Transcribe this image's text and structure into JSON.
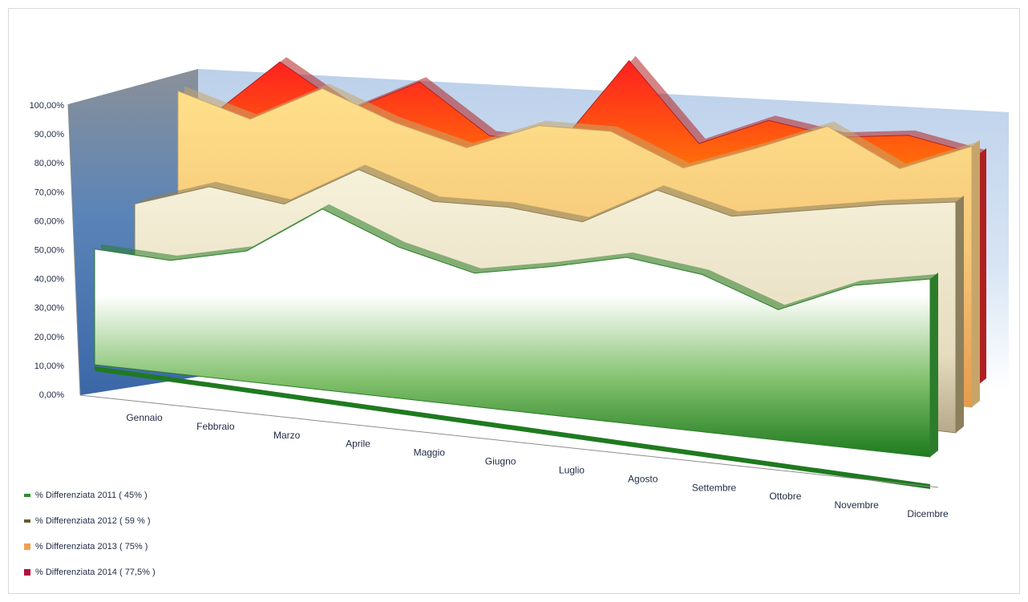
{
  "chart_data": {
    "type": "area",
    "chart_style": "3d-area",
    "title": "",
    "xlabel": "",
    "ylabel": "",
    "categories": [
      "Gennaio",
      "Febbraio",
      "Marzo",
      "Aprile",
      "Maggio",
      "Giugno",
      "Luglio",
      "Agosto",
      "Settembre",
      "Ottobre",
      "Novembre",
      "Dicembre"
    ],
    "y_ticks": [
      "0,00%",
      "10,00%",
      "20,00%",
      "30,00%",
      "40,00%",
      "50,00%",
      "60,00%",
      "70,00%",
      "80,00%",
      "90,00%",
      "100,00%"
    ],
    "ylim": [
      0,
      100
    ],
    "grid": false,
    "legend_position": "bottom-left",
    "series": [
      {
        "name": "% Differenziata 2011 ( 45% )",
        "color": "#2e8b2e",
        "values": [
          39,
          38,
          44,
          61,
          51,
          45,
          50,
          56,
          53,
          44,
          55,
          60
        ]
      },
      {
        "name": "% Differenziata 2012 ( 59 % )",
        "color": "#6b5a2a",
        "values": [
          46,
          55,
          52,
          67,
          59,
          60,
          58,
          72,
          66,
          71,
          76,
          80
        ]
      },
      {
        "name": "% Differenziata 2013 ( 75% )",
        "color": "#f0a050",
        "values": [
          79,
          72,
          86,
          77,
          71,
          82,
          83,
          73,
          83,
          94,
          82,
          93
        ]
      },
      {
        "name": "% Differenziata 2014 ( 77,5% )",
        "color": "#b01040",
        "values": [
          65,
          89,
          74,
          88,
          71,
          71,
          106,
          78,
          90,
          87,
          91,
          87
        ]
      }
    ]
  }
}
